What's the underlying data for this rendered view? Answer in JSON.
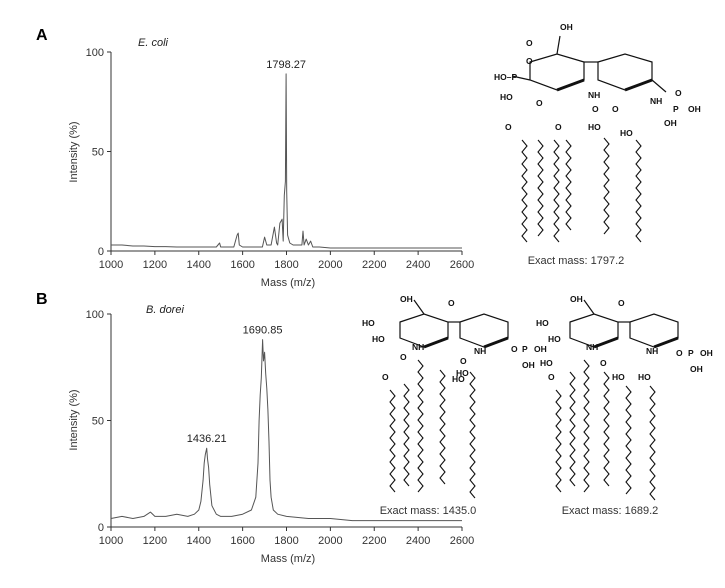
{
  "figure": {
    "panels": [
      {
        "letter": "A"
      },
      {
        "letter": "B"
      }
    ]
  },
  "structures": {
    "atom_labels": {
      "oh": "OH",
      "ho": "HO",
      "o": "O",
      "p": "P",
      "nh": "NH",
      "ho_p": "HO–P"
    },
    "captions": [
      "Exact mass: 1797.2",
      "Exact mass: 1435.0",
      "Exact mass: 1689.2"
    ]
  },
  "chart_data": [
    {
      "type": "line",
      "organism": "E. coli",
      "xlabel": "Mass (m/z)",
      "ylabel": "Intensity (%)",
      "xlim": [
        1000,
        2600
      ],
      "ylim": [
        0,
        100
      ],
      "xticks": [
        1000,
        1200,
        1400,
        1600,
        1800,
        2000,
        2200,
        2400,
        2600
      ],
      "yticks": [
        0,
        50,
        100
      ],
      "series": [
        {
          "x": [
            1000,
            1050,
            1100,
            1150,
            1200,
            1250,
            1300,
            1350,
            1400,
            1450,
            1480,
            1495,
            1500,
            1505,
            1520,
            1560,
            1575,
            1580,
            1585,
            1600,
            1650,
            1690,
            1700,
            1710,
            1730,
            1745,
            1755,
            1760,
            1770,
            1780,
            1785,
            1790,
            1795,
            1798.27,
            1801,
            1805,
            1815,
            1830,
            1845,
            1860,
            1870,
            1875,
            1880,
            1890,
            1900,
            1910,
            1920,
            1930,
            1950,
            2000,
            2100,
            2200,
            2300,
            2400,
            2500,
            2600
          ],
          "y": [
            3,
            3,
            2.5,
            2.5,
            2.2,
            2.2,
            2,
            2,
            2,
            2,
            2,
            4,
            2,
            2,
            2,
            2,
            8,
            9,
            3,
            2,
            2,
            2,
            7,
            3,
            3,
            12,
            4,
            3,
            14,
            16,
            5,
            28,
            35,
            89,
            30,
            8,
            4,
            3,
            3,
            3,
            3,
            10,
            3,
            6,
            3,
            5,
            2,
            2,
            2,
            1.5,
            1.5,
            1.5,
            1.5,
            1.5,
            1.5,
            1.5
          ]
        }
      ],
      "annotations": [
        {
          "x": 1798.27,
          "y": 89,
          "text": "1798.27"
        }
      ]
    },
    {
      "type": "line",
      "organism": "B. dorei",
      "xlabel": "Mass (m/z)",
      "ylabel": "Intensity (%)",
      "xlim": [
        1000,
        2600
      ],
      "ylim": [
        0,
        100
      ],
      "xticks": [
        1000,
        1200,
        1400,
        1600,
        1800,
        2000,
        2200,
        2400,
        2600
      ],
      "yticks": [
        0,
        50,
        100
      ],
      "series": [
        {
          "x": [
            1000,
            1050,
            1100,
            1150,
            1180,
            1200,
            1250,
            1300,
            1350,
            1380,
            1400,
            1410,
            1420,
            1425,
            1430,
            1436.21,
            1440,
            1445,
            1450,
            1460,
            1480,
            1500,
            1550,
            1600,
            1640,
            1660,
            1670,
            1675,
            1680,
            1685,
            1690.85,
            1695,
            1700,
            1705,
            1710,
            1715,
            1720,
            1725,
            1730,
            1740,
            1760,
            1800,
            1900,
            2000,
            2100,
            2200,
            2300,
            2400,
            2500,
            2600
          ],
          "y": [
            4,
            5,
            4,
            5,
            7,
            5,
            5,
            6,
            5,
            6,
            8,
            12,
            22,
            30,
            34,
            37,
            32,
            28,
            20,
            10,
            6,
            5,
            5,
            6,
            8,
            14,
            30,
            50,
            62,
            70,
            88,
            78,
            82,
            72,
            65,
            55,
            40,
            22,
            14,
            8,
            6,
            5,
            4,
            4,
            3,
            3,
            3,
            3,
            3,
            3
          ]
        }
      ],
      "annotations": [
        {
          "x": 1436.21,
          "y": 37,
          "text": "1436.21"
        },
        {
          "x": 1690.85,
          "y": 88,
          "text": "1690.85"
        }
      ]
    }
  ]
}
